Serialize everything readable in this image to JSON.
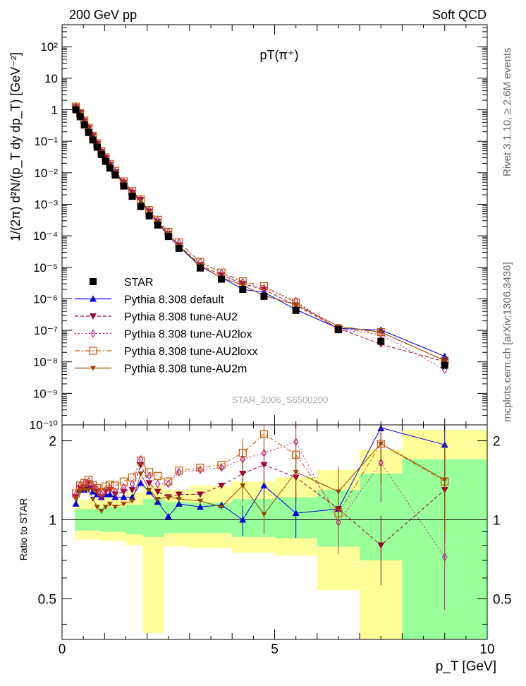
{
  "header": {
    "left": "200 GeV pp",
    "right": "Soft QCD",
    "side_top": "Rivet 3.1.10, ≥ 2.6M events",
    "side_bottom": "mcplots.cern.ch [arXiv:1306.3436]"
  },
  "chart_data": {
    "type": "scatter",
    "title": "pT(π⁺)",
    "watermark": "STAR_2006_S6500200",
    "ylabel": "1/(2π) d²N/(p_T dy dp_T) [GeV⁻²]",
    "ratio_ylabel": "Ratio to STAR",
    "xlabel": "p_T [GeV]",
    "xlim": [
      0,
      10
    ],
    "ylim": [
      1e-10,
      500
    ],
    "ylog": true,
    "ratio_ylim": [
      0.35,
      2.3
    ],
    "ratio_log": true,
    "x_ticks": [
      "0",
      "5",
      "10"
    ],
    "y_ticks": [
      "10⁻¹⁰",
      "10⁻⁹",
      "10⁻⁸",
      "10⁻⁷",
      "10⁻⁶",
      "10⁻⁵",
      "10⁻⁴",
      "10⁻³",
      "10⁻²",
      "10⁻¹",
      "1",
      "10",
      "10²"
    ],
    "ratio_ticks": [
      "0.5",
      "1",
      "2"
    ],
    "legend_position": "bottom-left of main panel",
    "x": [
      0.325,
      0.425,
      0.525,
      0.625,
      0.725,
      0.825,
      0.925,
      1.025,
      1.125,
      1.25,
      1.45,
      1.65,
      1.85,
      2.05,
      2.25,
      2.5,
      2.75,
      3.25,
      3.75,
      4.25,
      4.75,
      5.5,
      6.5,
      7.5,
      9.0
    ],
    "star": [
      1.0,
      0.6,
      0.33,
      0.19,
      0.11,
      0.065,
      0.038,
      0.023,
      0.014,
      0.0085,
      0.0038,
      0.0018,
      0.00085,
      0.00043,
      0.00022,
      9.5e-05,
      4e-05,
      9.5e-06,
      4.2e-06,
      2e-06,
      1.2e-06,
      4.3e-07,
      1.05e-07,
      4.5e-08,
      7.8e-09
    ],
    "star_band_inner": [
      [
        0.3,
        0.91,
        1.1
      ],
      [
        0.9,
        0.9,
        1.12
      ],
      [
        1.5,
        0.88,
        1.14
      ],
      [
        1.9,
        0.86,
        1.2
      ],
      [
        2.4,
        0.89,
        1.17
      ],
      [
        3.0,
        0.89,
        1.16
      ],
      [
        4.0,
        0.86,
        1.2
      ],
      [
        5.0,
        0.85,
        1.22
      ],
      [
        6.0,
        0.79,
        1.3
      ],
      [
        7.0,
        0.7,
        1.5
      ],
      [
        8.0,
        0.35,
        1.7
      ],
      [
        10.0,
        0.35,
        1.7
      ]
    ],
    "star_band_outer": [
      [
        0.3,
        0.84,
        1.19
      ],
      [
        0.9,
        0.83,
        1.22
      ],
      [
        1.5,
        0.8,
        1.27
      ],
      [
        1.9,
        0.37,
        1.35
      ],
      [
        2.4,
        0.79,
        1.3
      ],
      [
        3.0,
        0.78,
        1.35
      ],
      [
        4.0,
        0.75,
        1.4
      ],
      [
        5.0,
        0.73,
        1.45
      ],
      [
        6.0,
        0.54,
        1.55
      ],
      [
        7.0,
        0.35,
        1.85
      ],
      [
        8.0,
        0.35,
        2.2
      ],
      [
        10.0,
        0.35,
        2.2
      ]
    ],
    "series": [
      {
        "name": "STAR",
        "color": "#000000",
        "marker": "square-filled",
        "line": "none"
      },
      {
        "name": "Pythia 8.308 default",
        "color": "#0000dd",
        "marker": "triangle-up-filled",
        "line": "solid",
        "ratio": [
          1.15,
          1.3,
          1.3,
          1.35,
          1.28,
          1.25,
          1.22,
          1.25,
          1.25,
          1.22,
          1.22,
          1.22,
          1.38,
          1.28,
          1.17,
          1.03,
          1.15,
          1.12,
          1.14,
          1.0,
          1.35,
          1.06,
          1.1,
          2.28,
          1.93
        ]
      },
      {
        "name": "Pythia 8.308 tune-AU2",
        "color": "#990033",
        "marker": "triangle-down-filled",
        "line": "dashed",
        "ratio": [
          1.22,
          1.32,
          1.33,
          1.38,
          1.32,
          1.28,
          1.22,
          1.28,
          1.3,
          1.25,
          1.28,
          1.3,
          1.62,
          1.38,
          1.28,
          1.22,
          1.25,
          1.25,
          1.35,
          1.5,
          1.62,
          1.45,
          1.1,
          0.8,
          1.3
        ]
      },
      {
        "name": "Pythia 8.308 tune-AU2lox",
        "color": "#bb2288",
        "marker": "diamond-open",
        "line": "dotted",
        "ratio": [
          1.25,
          1.35,
          1.38,
          1.4,
          1.35,
          1.3,
          1.25,
          1.3,
          1.32,
          1.28,
          1.33,
          1.37,
          1.7,
          1.47,
          1.37,
          1.37,
          1.52,
          1.55,
          1.58,
          1.7,
          1.8,
          1.98,
          0.98,
          1.65,
          0.72
        ]
      },
      {
        "name": "Pythia 8.308 tune-AU2loxx",
        "color": "#cc5500",
        "marker": "square-open",
        "line": "dashdot",
        "ratio": [
          1.26,
          1.35,
          1.38,
          1.42,
          1.36,
          1.32,
          1.28,
          1.34,
          1.36,
          1.35,
          1.4,
          1.45,
          1.68,
          1.52,
          1.47,
          1.4,
          1.54,
          1.58,
          1.62,
          1.8,
          2.12,
          1.77,
          1.06,
          1.95,
          1.4
        ]
      },
      {
        "name": "Pythia 8.308 tune-AU2m",
        "color": "#994400",
        "marker": "star",
        "line": "solid",
        "ratio": [
          1.2,
          1.28,
          1.3,
          1.3,
          1.2,
          1.12,
          1.08,
          1.12,
          1.15,
          1.12,
          1.15,
          1.18,
          1.5,
          1.3,
          1.2,
          1.22,
          1.2,
          1.18,
          1.12,
          1.35,
          1.05,
          1.52,
          1.28,
          1.95,
          1.42
        ]
      }
    ]
  }
}
